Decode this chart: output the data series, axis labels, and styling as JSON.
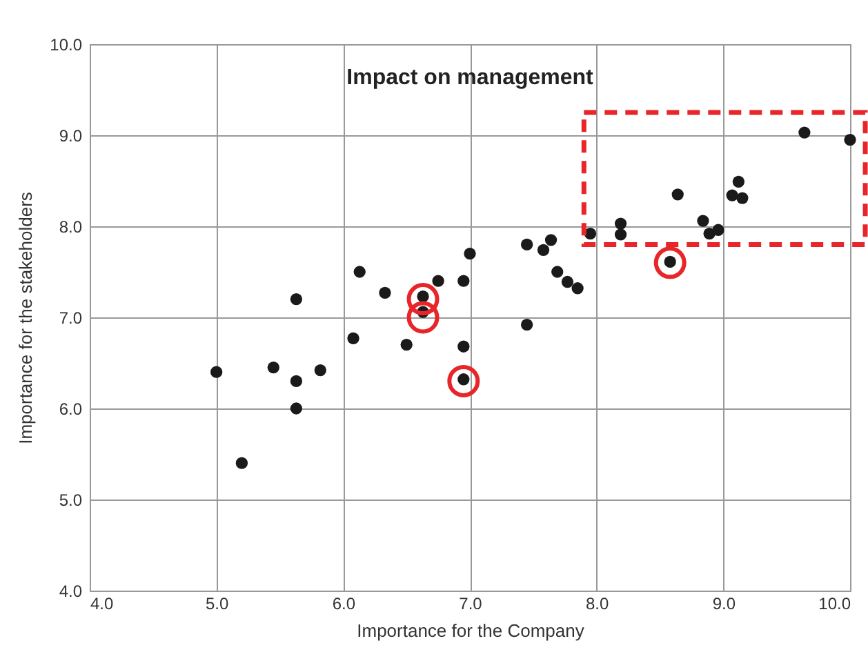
{
  "chart_data": {
    "type": "scatter",
    "title": "Impact on management",
    "xlabel": "Importance for the Company",
    "ylabel": "Importance for the stakeholders",
    "xlim": [
      4,
      10
    ],
    "ylim": [
      4,
      10
    ],
    "xticks": [
      {
        "value": 4,
        "label": "4.0"
      },
      {
        "value": 5,
        "label": "5.0"
      },
      {
        "value": 6,
        "label": "6.0"
      },
      {
        "value": 7,
        "label": "7.0"
      },
      {
        "value": 8,
        "label": "8.0"
      },
      {
        "value": 9,
        "label": "9.0"
      },
      {
        "value": 10,
        "label": "10.0"
      }
    ],
    "yticks": [
      {
        "value": 4,
        "label": "4.0"
      },
      {
        "value": 5,
        "label": "5.0"
      },
      {
        "value": 6,
        "label": "6.0"
      },
      {
        "value": 7,
        "label": "7.0"
      },
      {
        "value": 8,
        "label": "8.0"
      },
      {
        "value": 9,
        "label": "9.0"
      },
      {
        "value": 10,
        "label": "10.0"
      }
    ],
    "grid": true,
    "marker": "circle",
    "series": [
      {
        "color": "#1a1a1a",
        "x": [
          5.0,
          5.2,
          5.45,
          5.63,
          5.63,
          5.63,
          5.82,
          6.08,
          6.13,
          6.33,
          6.5,
          6.63,
          6.63,
          6.75,
          6.95,
          6.95,
          6.95,
          7.0,
          7.45,
          7.45,
          7.58,
          7.64,
          7.69,
          7.77,
          7.85,
          7.95,
          8.19,
          8.19,
          8.64,
          8.58,
          8.84,
          8.89,
          8.96,
          9.07,
          9.12,
          9.15,
          9.64,
          10.0
        ],
        "values": [
          6.4,
          5.4,
          6.45,
          7.2,
          6.3,
          6.0,
          6.42,
          6.77,
          7.5,
          7.27,
          6.7,
          7.23,
          7.06,
          7.4,
          7.4,
          6.68,
          6.32,
          7.7,
          7.8,
          6.92,
          7.74,
          7.85,
          7.5,
          7.39,
          7.32,
          7.92,
          8.03,
          7.91,
          8.35,
          7.61,
          8.06,
          7.92,
          7.96,
          8.34,
          8.49,
          8.31,
          9.03,
          8.95
        ]
      },
      {
        "color": "#e8262a",
        "x": [
          6.63,
          6.63,
          6.95,
          8.58
        ],
        "values": [
          7.2,
          7.0,
          6.3,
          7.6
        ]
      }
    ]
  }
}
